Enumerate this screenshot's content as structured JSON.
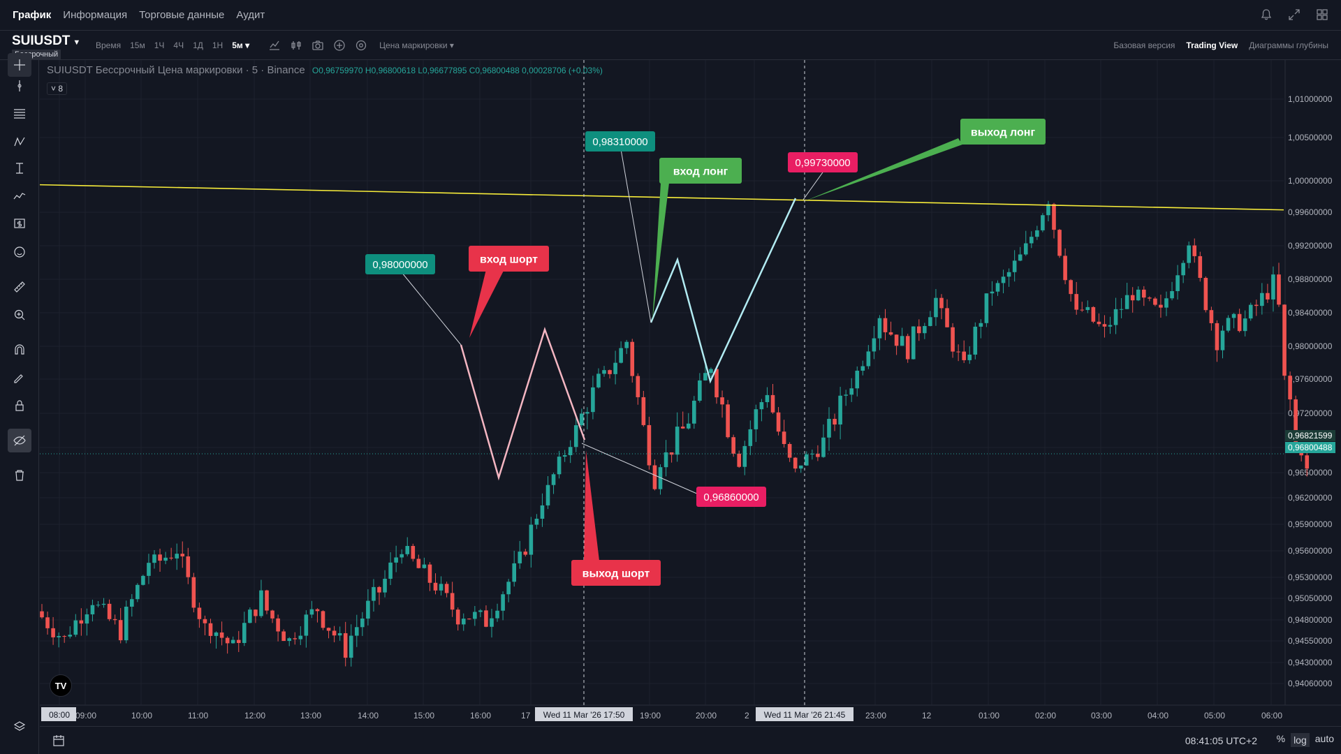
{
  "nav": {
    "tabs": [
      "График",
      "Информация",
      "Торговые данные",
      "Аудит"
    ],
    "active": 0
  },
  "symbol": {
    "name": "SUIUSDT",
    "badge": "Бессрочный"
  },
  "toolbar": {
    "time_label": "Время",
    "intervals": [
      "15м",
      "1Ч",
      "4Ч",
      "1Д",
      "1Н"
    ],
    "active_interval": "5м",
    "price_type": "Цена маркировки"
  },
  "views": [
    "Базовая версия",
    "Trading View",
    "Диаграммы глубины"
  ],
  "active_view": "Trading View",
  "legend": {
    "title": "SUIUSDT Бессрочный Цена маркировки · 5 · Binance",
    "ohlc": "O0,96759970 H0,96800618 L0,96677895 C0,96800488 0,00028706 (+0.03%)",
    "indicators": "8"
  },
  "price_axis": {
    "ticks": [
      "1,01000000",
      "1,00500000",
      "1,00000000",
      "0,99600000",
      "0,99200000",
      "0,98800000",
      "0,98400000",
      "0,98000000",
      "0,97600000",
      "0,97200000",
      "0,96900000",
      "0,96500000",
      "0,96200000",
      "0,95900000",
      "0,95600000",
      "0,95300000",
      "0,95050000",
      "0,94800000",
      "0,94550000",
      "0,94300000",
      "0,94060000"
    ],
    "tick_values": [
      1.01,
      1.005,
      1.0,
      0.996,
      0.992,
      0.988,
      0.984,
      0.98,
      0.976,
      0.972,
      0.969,
      0.965,
      0.962,
      0.959,
      0.956,
      0.953,
      0.9505,
      0.948,
      0.9455,
      0.943,
      0.9406
    ],
    "label_mark": "0,96821599",
    "label_last": "0,96800488"
  },
  "time_axis": {
    "ticks": [
      "08:00",
      "09:00",
      "10:00",
      "11:00",
      "12:00",
      "13:00",
      "14:00",
      "15:00",
      "16:00",
      "17",
      "19:00",
      "20:00",
      "2",
      "23:00",
      "12",
      "01:00",
      "02:00",
      "03:00",
      "04:00",
      "05:00",
      "06:00"
    ],
    "crosshair1": "Wed 11 Mar '26   17:50",
    "crosshair2": "Wed 11 Mar '26   21:45"
  },
  "annotations": {
    "p1": "0,98000000",
    "p2": "0,98310000",
    "p3": "0,99730000",
    "p4": "0,96860000",
    "entry_short": "вход шорт",
    "exit_short": "выход шорт",
    "entry_long": "вход лонг",
    "exit_long": "выход лонг"
  },
  "colors": {
    "up": "#26a69a",
    "down": "#ef5350",
    "trend": "#f7ec3a",
    "short_label": "#e8334a",
    "long_label": "#4caf50",
    "teal_label": "#0e8f7e",
    "pink_label": "#e91e63",
    "short_path": "#f4b6c2",
    "long_path": "#b2ebf2"
  },
  "bottom": {
    "clock": "08:41:05 UTC+2",
    "buttons": [
      "%",
      "log",
      "auto"
    ],
    "active_button": "log"
  },
  "chart_data": {
    "type": "candlestick",
    "title": "SUIUSDT Бессрочный Цена маркировки · 5 · Binance",
    "xlabel": "",
    "ylabel": "",
    "ylim": [
      0.9395,
      1.0115
    ],
    "last_price": 0.96800488,
    "key_points": [
      {
        "label": "вход шорт",
        "value": 0.98
      },
      {
        "label": "выход шорт",
        "value": 0.9686
      },
      {
        "label": "вход лонг",
        "value": 0.9831
      },
      {
        "label": "выход лонг",
        "value": 0.9973
      }
    ],
    "trendline": [
      0.9995,
      0.9963
    ],
    "segments": [
      [
        0.949,
        0.946
      ],
      [
        0.946,
        0.95
      ],
      [
        0.95,
        0.947
      ],
      [
        0.947,
        0.954
      ],
      [
        0.954,
        0.956
      ],
      [
        0.956,
        0.948
      ],
      [
        0.948,
        0.945
      ],
      [
        0.945,
        0.95
      ],
      [
        0.95,
        0.946
      ],
      [
        0.946,
        0.949
      ],
      [
        0.949,
        0.945
      ],
      [
        0.945,
        0.95
      ],
      [
        0.95,
        0.956
      ],
      [
        0.956,
        0.953
      ],
      [
        0.953,
        0.949
      ],
      [
        0.949,
        0.948
      ],
      [
        0.948,
        0.953
      ],
      [
        0.953,
        0.961
      ],
      [
        0.961,
        0.969
      ],
      [
        0.969,
        0.975
      ],
      [
        0.975,
        0.98
      ],
      [
        0.98,
        0.966
      ],
      [
        0.966,
        0.97
      ],
      [
        0.97,
        0.977
      ],
      [
        0.977,
        0.968
      ],
      [
        0.968,
        0.974
      ],
      [
        0.974,
        0.966
      ],
      [
        0.966,
        0.969
      ],
      [
        0.969,
        0.975
      ],
      [
        0.975,
        0.983
      ],
      [
        0.983,
        0.98
      ],
      [
        0.98,
        0.985
      ],
      [
        0.985,
        0.978
      ],
      [
        0.978,
        0.986
      ],
      [
        0.986,
        0.99
      ],
      [
        0.99,
        0.997
      ],
      [
        0.997,
        0.985
      ],
      [
        0.985,
        0.982
      ],
      [
        0.982,
        0.986
      ],
      [
        0.986,
        0.984
      ],
      [
        0.984,
        0.992
      ],
      [
        0.992,
        0.982
      ],
      [
        0.982,
        0.983
      ],
      [
        0.983,
        0.987
      ],
      [
        0.987,
        0.976
      ],
      [
        0.976,
        0.975
      ],
      [
        0.975,
        0.968
      ],
      [
        0.968,
        0.97
      ],
      [
        0.97,
        0.964
      ],
      [
        0.964,
        0.969
      ]
    ]
  }
}
